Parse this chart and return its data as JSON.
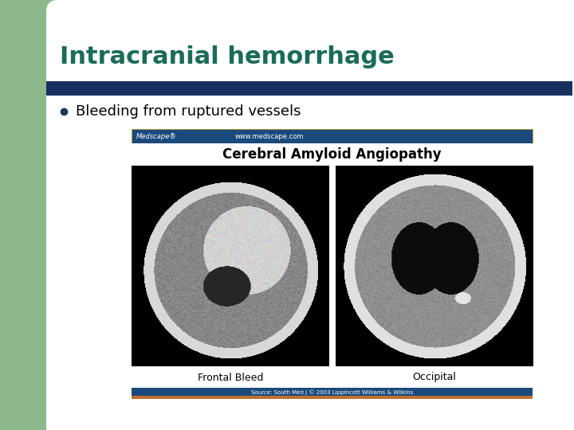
{
  "title": "Intracranial hemorrhage",
  "title_color": "#1a6b5a",
  "title_fontsize": 22,
  "title_fontweight": "bold",
  "bullet_text": "Bleeding from ruptured vessels",
  "bullet_fontsize": 13,
  "bullet_color": "#000000",
  "bullet_dot_color": "#1a3a5c",
  "bg_color": "#ffffff",
  "left_bar_color": "#8db88d",
  "top_corner_color": "#8db88d",
  "divider_color": "#1a3060",
  "image_caption_title": "Cerebral Amyloid Angiopathy",
  "image_caption_left": "Frontal Bleed",
  "image_caption_right": "Occipital",
  "medscape_text_left": "Medscape®",
  "medscape_text_right": "www.medscape.com",
  "footer_text": "Source: South Med J © 2003 Lippincott Williams & Wilkins",
  "medscape_bar_color": "#1a4a7c",
  "footer_bar_color": "#8b3020",
  "footer_bar_color2": "#c07030"
}
